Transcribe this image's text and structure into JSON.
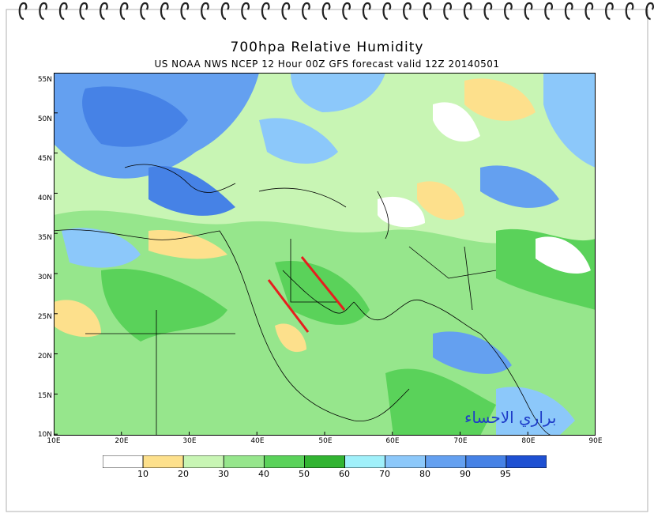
{
  "title": "700hpa Relative Humidity",
  "subtitle": "US NOAA NWS NCEP 12 Hour 00Z GFS forecast valid 12Z 20140501",
  "lat_labels": [
    "55N",
    "50N",
    "45N",
    "40N",
    "35N",
    "30N",
    "25N",
    "20N",
    "15N",
    "10N"
  ],
  "lon_labels": [
    "10E",
    "20E",
    "30E",
    "40E",
    "50E",
    "60E",
    "70E",
    "80E",
    "90E"
  ],
  "colorbar": {
    "labels": [
      "10",
      "20",
      "30",
      "40",
      "50",
      "60",
      "70",
      "80",
      "90",
      "95"
    ],
    "colors": [
      "#ffffff",
      "#fde08c",
      "#c8f5b4",
      "#96e68c",
      "#5ad25a",
      "#32b432",
      "#a0f0fa",
      "#8cc8fa",
      "#64a0f0",
      "#4682e6",
      "#1e50d2"
    ]
  },
  "watermark": "براري الاحساء",
  "colors": {
    "land_green": "#96e68c",
    "dry_yellow": "#fde08c",
    "moist_blue": "#4682e6",
    "annotation_red": "#e61e1e"
  }
}
